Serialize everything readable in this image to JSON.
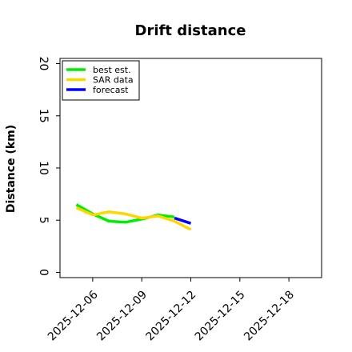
{
  "chart_data": {
    "type": "line",
    "title": "Drift distance",
    "xlabel": "",
    "ylabel": "Distance (km)",
    "ylim": [
      -0.5,
      20.5
    ],
    "xlim": [
      "2025-12-04",
      "2025-12-20"
    ],
    "yticks": [
      0,
      5,
      10,
      15,
      20
    ],
    "xticks": [
      "2025-12-06",
      "2025-12-09",
      "2025-12-12",
      "2025-12-15",
      "2025-12-18"
    ],
    "grid": false,
    "legend_position": "top-left",
    "series": [
      {
        "name": "best est.",
        "color": "#00ee00",
        "x": [
          "2025-12-05",
          "2025-12-06",
          "2025-12-07",
          "2025-12-08",
          "2025-12-09",
          "2025-12-10",
          "2025-12-11"
        ],
        "values": [
          6.5,
          5.6,
          4.9,
          4.8,
          5.1,
          5.5,
          5.3
        ]
      },
      {
        "name": "SAR data",
        "color": "#ffd700",
        "x": [
          "2025-12-05",
          "2025-12-06",
          "2025-12-07",
          "2025-12-08",
          "2025-12-09",
          "2025-12-10",
          "2025-12-11",
          "2025-12-12"
        ],
        "values": [
          6.2,
          5.5,
          5.8,
          5.6,
          5.2,
          5.4,
          4.9,
          4.1
        ]
      },
      {
        "name": "forecast",
        "color": "#0000ff",
        "x": [
          "2025-12-11",
          "2025-12-12"
        ],
        "values": [
          5.2,
          4.7
        ]
      }
    ]
  }
}
